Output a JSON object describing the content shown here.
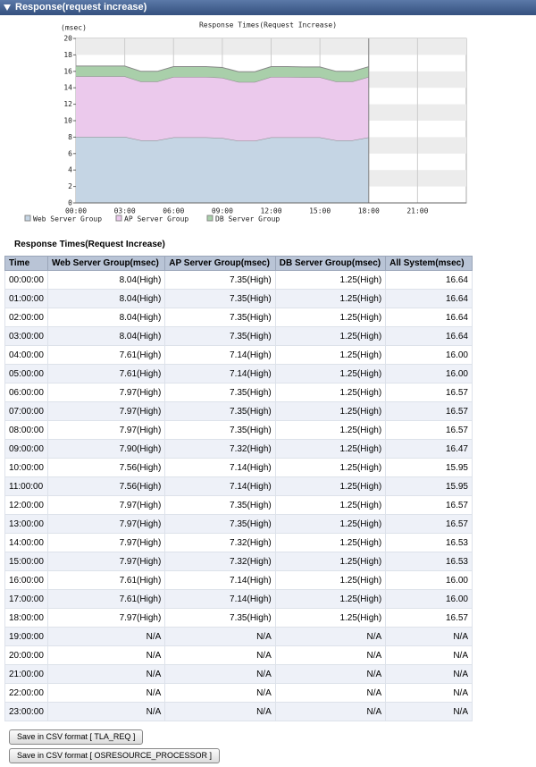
{
  "header": {
    "title": "Response(request increase)"
  },
  "chart_data": {
    "type": "area",
    "stacked": true,
    "title": "Response Times(Request Increase)",
    "y_label": "(msec)",
    "categories": [
      "00:00",
      null,
      null,
      "03:00",
      null,
      null,
      "06:00",
      null,
      null,
      "09:00",
      null,
      null,
      "12:00",
      null,
      null,
      "15:00",
      null,
      null,
      "18:00",
      null,
      null,
      "21:00",
      null,
      null
    ],
    "series": [
      {
        "name": "Web Server Group",
        "color": "#c5d5e4",
        "values": [
          8.04,
          8.04,
          8.04,
          8.04,
          7.61,
          7.61,
          7.97,
          7.97,
          7.97,
          7.9,
          7.56,
          7.56,
          7.97,
          7.97,
          7.97,
          7.97,
          7.61,
          7.61,
          7.97,
          null,
          null,
          null,
          null,
          null
        ]
      },
      {
        "name": "AP Server Group",
        "color": "#ebc9ec",
        "values": [
          7.35,
          7.35,
          7.35,
          7.35,
          7.14,
          7.14,
          7.35,
          7.35,
          7.35,
          7.32,
          7.14,
          7.14,
          7.35,
          7.35,
          7.32,
          7.32,
          7.14,
          7.14,
          7.35,
          null,
          null,
          null,
          null,
          null
        ]
      },
      {
        "name": "DB Server Group",
        "color": "#a9cfaa",
        "values": [
          1.25,
          1.25,
          1.25,
          1.25,
          1.25,
          1.25,
          1.25,
          1.25,
          1.25,
          1.25,
          1.25,
          1.25,
          1.25,
          1.25,
          1.25,
          1.25,
          1.25,
          1.25,
          1.25,
          null,
          null,
          null,
          null,
          null
        ]
      }
    ],
    "ylim": [
      0,
      20
    ],
    "yticks": [
      0,
      2,
      4,
      6,
      8,
      10,
      12,
      14,
      16,
      18,
      20
    ],
    "grid": true
  },
  "table": {
    "title": "Response Times(Request Increase)",
    "columns": [
      "Time",
      "Web Server Group(msec)",
      "AP Server Group(msec)",
      "DB Server Group(msec)",
      "All System(msec)"
    ],
    "rows": [
      [
        "00:00:00",
        "8.04(High)",
        "7.35(High)",
        "1.25(High)",
        "16.64"
      ],
      [
        "01:00:00",
        "8.04(High)",
        "7.35(High)",
        "1.25(High)",
        "16.64"
      ],
      [
        "02:00:00",
        "8.04(High)",
        "7.35(High)",
        "1.25(High)",
        "16.64"
      ],
      [
        "03:00:00",
        "8.04(High)",
        "7.35(High)",
        "1.25(High)",
        "16.64"
      ],
      [
        "04:00:00",
        "7.61(High)",
        "7.14(High)",
        "1.25(High)",
        "16.00"
      ],
      [
        "05:00:00",
        "7.61(High)",
        "7.14(High)",
        "1.25(High)",
        "16.00"
      ],
      [
        "06:00:00",
        "7.97(High)",
        "7.35(High)",
        "1.25(High)",
        "16.57"
      ],
      [
        "07:00:00",
        "7.97(High)",
        "7.35(High)",
        "1.25(High)",
        "16.57"
      ],
      [
        "08:00:00",
        "7.97(High)",
        "7.35(High)",
        "1.25(High)",
        "16.57"
      ],
      [
        "09:00:00",
        "7.90(High)",
        "7.32(High)",
        "1.25(High)",
        "16.47"
      ],
      [
        "10:00:00",
        "7.56(High)",
        "7.14(High)",
        "1.25(High)",
        "15.95"
      ],
      [
        "11:00:00",
        "7.56(High)",
        "7.14(High)",
        "1.25(High)",
        "15.95"
      ],
      [
        "12:00:00",
        "7.97(High)",
        "7.35(High)",
        "1.25(High)",
        "16.57"
      ],
      [
        "13:00:00",
        "7.97(High)",
        "7.35(High)",
        "1.25(High)",
        "16.57"
      ],
      [
        "14:00:00",
        "7.97(High)",
        "7.32(High)",
        "1.25(High)",
        "16.53"
      ],
      [
        "15:00:00",
        "7.97(High)",
        "7.32(High)",
        "1.25(High)",
        "16.53"
      ],
      [
        "16:00:00",
        "7.61(High)",
        "7.14(High)",
        "1.25(High)",
        "16.00"
      ],
      [
        "17:00:00",
        "7.61(High)",
        "7.14(High)",
        "1.25(High)",
        "16.00"
      ],
      [
        "18:00:00",
        "7.97(High)",
        "7.35(High)",
        "1.25(High)",
        "16.57"
      ],
      [
        "19:00:00",
        "N/A",
        "N/A",
        "N/A",
        "N/A"
      ],
      [
        "20:00:00",
        "N/A",
        "N/A",
        "N/A",
        "N/A"
      ],
      [
        "21:00:00",
        "N/A",
        "N/A",
        "N/A",
        "N/A"
      ],
      [
        "22:00:00",
        "N/A",
        "N/A",
        "N/A",
        "N/A"
      ],
      [
        "23:00:00",
        "N/A",
        "N/A",
        "N/A",
        "N/A"
      ]
    ]
  },
  "buttons": [
    "Save in CSV format [ TLA_REQ ]",
    "Save in CSV format [ OSRESOURCE_PROCESSOR ]"
  ]
}
